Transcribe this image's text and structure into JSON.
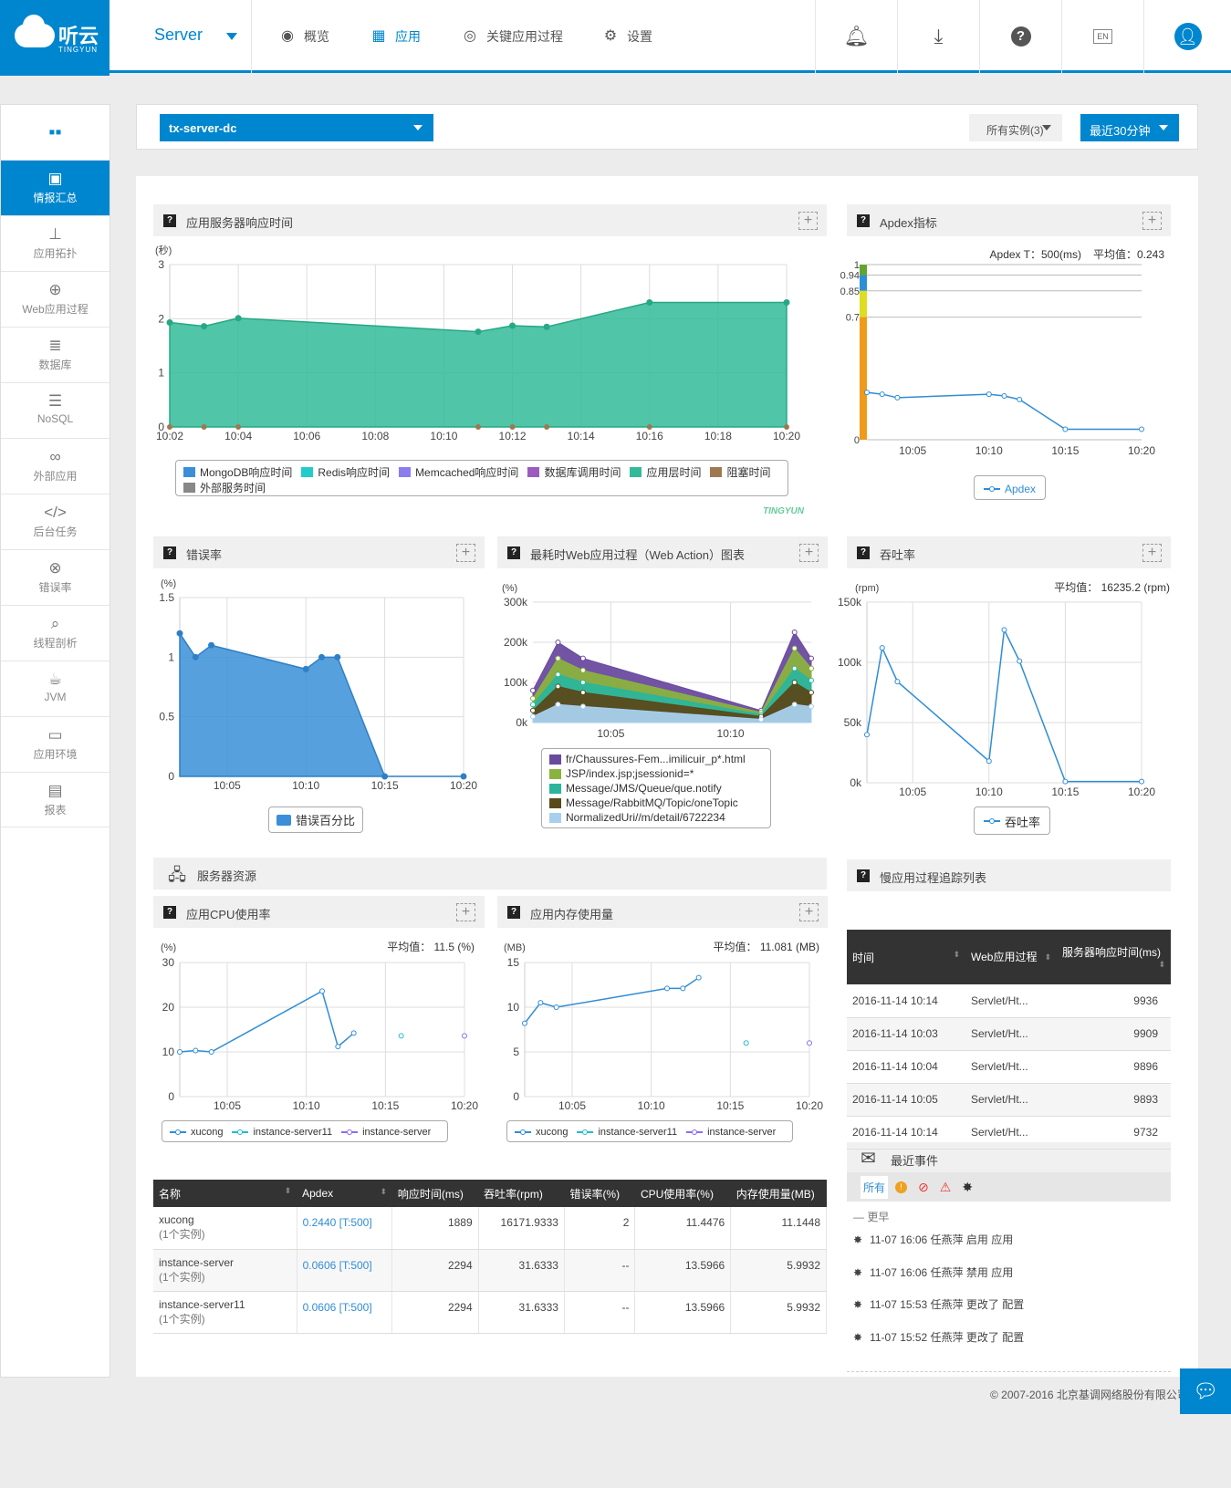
{
  "brand": {
    "name": "听云",
    "sub": "TINGYUN"
  },
  "header": {
    "server_label": "Server",
    "nav": [
      {
        "label": "概览",
        "icon": "eye-icon"
      },
      {
        "label": "应用",
        "icon": "grid-icon"
      },
      {
        "label": "关键应用过程",
        "icon": "target-icon"
      },
      {
        "label": "设置",
        "icon": "gear-icon"
      }
    ],
    "lang": "EN"
  },
  "sidebar": {
    "items": [
      {
        "label": "情报汇总",
        "icon": "dashboard-icon"
      },
      {
        "label": "应用拓扑",
        "icon": "topology-icon"
      },
      {
        "label": "Web应用过程",
        "icon": "globe-icon"
      },
      {
        "label": "数据库",
        "icon": "database-icon"
      },
      {
        "label": "NoSQL",
        "icon": "nosql-icon"
      },
      {
        "label": "外部应用",
        "icon": "link-icon"
      },
      {
        "label": "后台任务",
        "icon": "code-icon"
      },
      {
        "label": "错误率",
        "icon": "error-icon"
      },
      {
        "label": "线程剖析",
        "icon": "thread-icon"
      },
      {
        "label": "JVM",
        "icon": "java-icon"
      },
      {
        "label": "应用环境",
        "icon": "env-icon"
      },
      {
        "label": "报表",
        "icon": "report-icon"
      }
    ]
  },
  "filters": {
    "app": "tx-server-dc",
    "instances": "所有实例(3)",
    "time": "最近30分钟"
  },
  "panels": {
    "response": "应用服务器响应时间",
    "apdex": "Apdex指标",
    "error": "错误率",
    "web": "最耗时Web应用过程（Web Action）图表",
    "throughput": "吞吐率",
    "resources": "服务器资源",
    "cpu": "应用CPU使用率",
    "mem": "应用内存使用量",
    "slow": "慢应用过程追踪列表",
    "events": "最近事件"
  },
  "chart_data": [
    {
      "id": "response",
      "type": "area",
      "ylabel": "(秒)",
      "ylim": [
        0,
        3
      ],
      "x_ticks": [
        "10:02",
        "10:04",
        "10:06",
        "10:08",
        "10:10",
        "10:12",
        "10:14",
        "10:16",
        "10:18",
        "10:20"
      ],
      "series": [
        {
          "name": "应用层时间",
          "x": [
            "10:02",
            "10:03",
            "10:04",
            "10:11",
            "10:12",
            "10:13",
            "10:16",
            "10:20"
          ],
          "values": [
            1.93,
            1.86,
            2.01,
            1.76,
            1.87,
            1.85,
            2.3,
            2.3
          ]
        }
      ],
      "legend": [
        "MongoDB响应时间",
        "Redis响应时间",
        "Memcached响应时间",
        "数据库调用时间",
        "应用层时间",
        "阻塞时间",
        "外部服务时间"
      ],
      "legend_colors": [
        "#3a8fd8",
        "#22cccc",
        "#8b7cf0",
        "#9c5bbf",
        "#33bb99",
        "#a07850",
        "#888888"
      ],
      "watermark": "TINGYUN"
    },
    {
      "id": "apdex",
      "type": "line",
      "apdex_t": "Apdex T：500(ms)",
      "avg": "平均值：0.243",
      "y_ticks": [
        "1",
        "0.94",
        "0.85",
        "0.7",
        "0"
      ],
      "x_ticks": [
        "10:05",
        "10:10",
        "10:15",
        "10:20"
      ],
      "series": [
        {
          "name": "Apdex",
          "x": [
            "10:02",
            "10:03",
            "10:04",
            "10:10",
            "10:11",
            "10:12",
            "10:15",
            "10:20"
          ],
          "values": [
            0.27,
            0.26,
            0.24,
            0.26,
            0.25,
            0.23,
            0.06,
            0.06
          ]
        }
      ]
    },
    {
      "id": "error",
      "type": "area",
      "ylabel": "(%)",
      "ylim": [
        0,
        1.5
      ],
      "y_ticks": [
        "1.5",
        "1",
        "0.5",
        "0"
      ],
      "x_ticks": [
        "10:05",
        "10:10",
        "10:15",
        "10:20"
      ],
      "series": [
        {
          "name": "错误百分比",
          "x": [
            "10:02",
            "10:03",
            "10:04",
            "10:10",
            "10:11",
            "10:12",
            "10:15",
            "10:20"
          ],
          "values": [
            1.2,
            1.0,
            1.1,
            0.9,
            1.0,
            1.0,
            0,
            0
          ]
        }
      ]
    },
    {
      "id": "web",
      "type": "area",
      "ylabel": "(%)",
      "y_ticks": [
        "300k",
        "200k",
        "100k",
        "0k"
      ],
      "x_ticks": [
        "10:05",
        "10:10"
      ],
      "series": [
        {
          "name": "fr/Chaussures-Fem...imilicuir_p*.html",
          "values": [
            80,
            200,
            160,
            30,
            225,
            160
          ]
        },
        {
          "name": "JSP/index.jsp;jsessionid=*",
          "values": [
            60,
            160,
            130,
            25,
            185,
            135
          ]
        },
        {
          "name": "Message/JMS/Queue/que.notify",
          "values": [
            45,
            120,
            100,
            20,
            135,
            105
          ]
        },
        {
          "name": "Message/RabbitMQ/Topic/oneTopic",
          "values": [
            30,
            90,
            75,
            15,
            100,
            75
          ]
        },
        {
          "name": "NormalizedUri//m/detail/6722234",
          "values": [
            15,
            45,
            40,
            8,
            45,
            40
          ]
        }
      ],
      "colors": [
        "#6a4a9f",
        "#8ab23f",
        "#2bb59c",
        "#5a4a1a",
        "#a8d0ee"
      ]
    },
    {
      "id": "throughput",
      "type": "line",
      "ylabel": "(rpm)",
      "avg": "平均值： 16235.2 (rpm)",
      "y_ticks": [
        "150k",
        "100k",
        "50k",
        "0k"
      ],
      "x_ticks": [
        "10:05",
        "10:10",
        "10:15",
        "10:20"
      ],
      "series": [
        {
          "name": "吞吐率",
          "x": [
            "10:02",
            "10:03",
            "10:04",
            "10:10",
            "10:11",
            "10:12",
            "10:15",
            "10:20"
          ],
          "values": [
            40000,
            112000,
            84000,
            18000,
            127000,
            101000,
            1000,
            1000
          ]
        }
      ]
    },
    {
      "id": "cpu",
      "type": "line",
      "ylabel": "(%)",
      "avg": "平均值： 11.5 (%)",
      "y_ticks": [
        "30",
        "20",
        "10",
        "0"
      ],
      "x_ticks": [
        "10:05",
        "10:10",
        "10:15",
        "10:20"
      ],
      "series": [
        {
          "name": "xucong",
          "x": [
            "10:02",
            "10:03",
            "10:04",
            "10:11",
            "10:12",
            "10:13"
          ],
          "values": [
            10,
            10.3,
            10,
            23.6,
            11.2,
            14.2
          ]
        },
        {
          "name": "instance-server11",
          "x": [
            "10:16"
          ],
          "values": [
            13.6
          ]
        },
        {
          "name": "instance-server",
          "x": [
            "10:20"
          ],
          "values": [
            13.6
          ]
        }
      ]
    },
    {
      "id": "mem",
      "type": "line",
      "ylabel": "(MB)",
      "avg": "平均值： 11.081 (MB)",
      "y_ticks": [
        "15",
        "10",
        "5",
        "0"
      ],
      "x_ticks": [
        "10:05",
        "10:10",
        "10:15",
        "10:20"
      ],
      "series": [
        {
          "name": "xucong",
          "x": [
            "10:02",
            "10:03",
            "10:04",
            "10:11",
            "10:12",
            "10:13"
          ],
          "values": [
            8.2,
            10.5,
            10,
            12.1,
            12.1,
            13.3
          ]
        },
        {
          "name": "instance-server11",
          "x": [
            "10:16"
          ],
          "values": [
            6
          ]
        },
        {
          "name": "instance-server",
          "x": [
            "10:20"
          ],
          "values": [
            6
          ]
        }
      ]
    }
  ],
  "slow_table": {
    "headers": [
      "时间",
      "Web应用过程",
      "服务器响应时间(ms)"
    ],
    "rows": [
      [
        "2016-11-14 10:14",
        "Servlet/Ht...",
        "9936"
      ],
      [
        "2016-11-14 10:03",
        "Servlet/Ht...",
        "9909"
      ],
      [
        "2016-11-14 10:04",
        "Servlet/Ht...",
        "9896"
      ],
      [
        "2016-11-14 10:05",
        "Servlet/Ht...",
        "9893"
      ],
      [
        "2016-11-14 10:14",
        "Servlet/Ht...",
        "9732"
      ]
    ]
  },
  "app_table": {
    "headers": [
      "名称",
      "Apdex",
      "响应时间(ms)",
      "吞吐率(rpm)",
      "错误率(%)",
      "CPU使用率(%)",
      "内存使用量(MB)"
    ],
    "rows": [
      [
        "xucong",
        "(1个实例)",
        "0.2440 [T:500]",
        "1889",
        "16171.9333",
        "2",
        "11.4476",
        "11.1448"
      ],
      [
        "instance-server",
        "(1个实例)",
        "0.0606 [T:500]",
        "2294",
        "31.6333",
        "--",
        "13.5966",
        "5.9932"
      ],
      [
        "instance-server11",
        "(1个实例)",
        "0.0606 [T:500]",
        "2294",
        "31.6333",
        "--",
        "13.5966",
        "5.9932"
      ]
    ]
  },
  "events": {
    "tab_all": "所有",
    "group": "— 更早",
    "items": [
      "11-07 16:06 任燕萍 启用 应用",
      "11-07 16:06 任燕萍 禁用 应用",
      "11-07 15:53 任燕萍 更改了 配置",
      "11-07 15:52 任燕萍 更改了 配置"
    ]
  },
  "footer": "© 2007-2016 北京基调网络股份有限公司"
}
